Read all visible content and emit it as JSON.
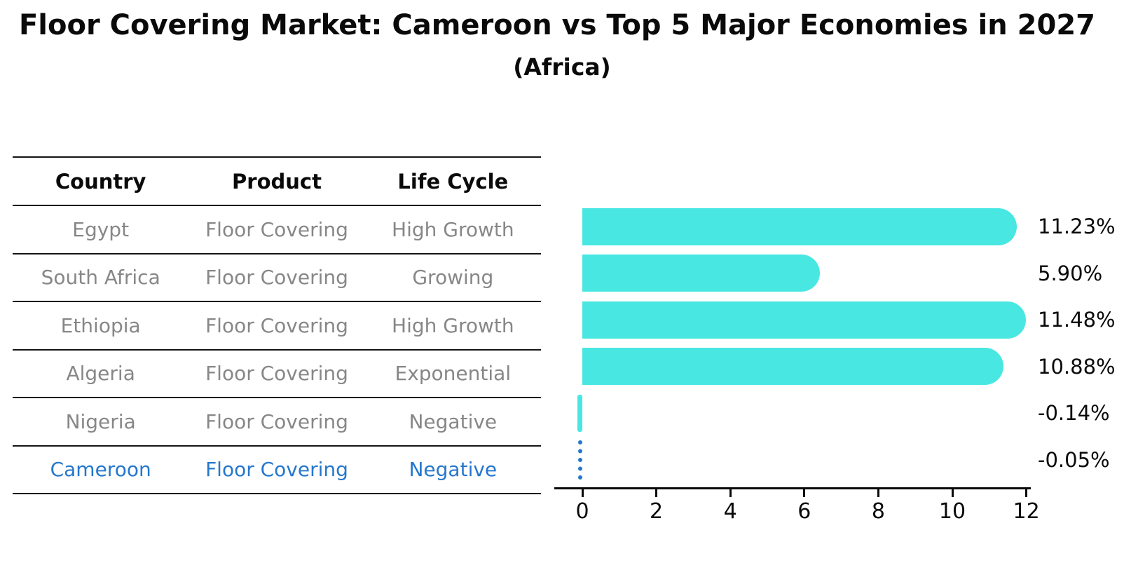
{
  "title": "Floor Covering Market: Cameroon vs Top 5 Major Economies in 2027",
  "subtitle": "(Africa)",
  "table": {
    "headers": [
      "Country",
      "Product",
      "Life Cycle"
    ],
    "rows": [
      {
        "country": "Egypt",
        "product": "Floor Covering",
        "life_cycle": "High Growth",
        "highlight": false
      },
      {
        "country": "South Africa",
        "product": "Floor Covering",
        "life_cycle": "Growing",
        "highlight": false
      },
      {
        "country": "Ethiopia",
        "product": "Floor Covering",
        "life_cycle": "High Growth",
        "highlight": false
      },
      {
        "country": "Algeria",
        "product": "Floor Covering",
        "life_cycle": "Exponential",
        "highlight": false
      },
      {
        "country": "Nigeria",
        "product": "Floor Covering",
        "life_cycle": "Negative",
        "highlight": false
      },
      {
        "country": "Cameroon",
        "product": "Floor Covering",
        "life_cycle": "Negative",
        "highlight": true
      }
    ]
  },
  "chart_data": {
    "type": "bar",
    "orientation": "horizontal",
    "categories": [
      "Egypt",
      "South Africa",
      "Ethiopia",
      "Algeria",
      "Nigeria",
      "Cameroon"
    ],
    "values": [
      11.23,
      5.9,
      11.48,
      10.88,
      -0.14,
      -0.05
    ],
    "value_labels": [
      "11.23%",
      "5.90%",
      "11.48%",
      "10.88%",
      "-0.14%",
      "-0.05%"
    ],
    "xticks": [
      0,
      2,
      4,
      6,
      8,
      10,
      12
    ],
    "xlim": [
      -0.75,
      12.1
    ],
    "grid": false,
    "legend": false,
    "bar_color": "#49e7e1",
    "highlight_color": "#2577cd",
    "highlight_index": 5,
    "highlight_marker": "dotted-vertical-line",
    "title": "Floor Covering Market: Cameroon vs Top 5 Major Economies in 2027",
    "subtitle": "(Africa)",
    "xlabel": "",
    "ylabel": ""
  }
}
